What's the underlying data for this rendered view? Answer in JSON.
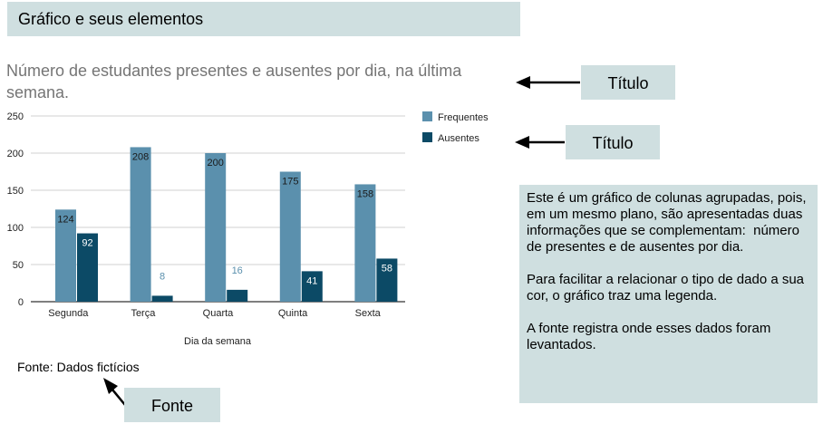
{
  "header": {
    "title": "Gráfico e seus elementos"
  },
  "tags": {
    "title_tag": "Título",
    "legend_tag": "Título",
    "source_tag": "Fonte"
  },
  "explanation": {
    "paragraphs": [
      "Este é um gráfico de colunas agrupadas, pois, em um mesmo plano, são apresentadas duas informações que se complementam:  número de presentes e de ausentes por dia.",
      "Para facilitar a relacionar o tipo de dado a sua cor, o gráfico traz uma legenda.",
      "A fonte registra onde esses dados foram levantados."
    ]
  },
  "source": {
    "text": "Fonte: Dados fictícios"
  },
  "colors": {
    "frequentes": "#5b90ad",
    "ausentes": "#0c4a66",
    "box": "#cfdfe0"
  },
  "chart_data": {
    "type": "bar",
    "title": "Número de estudantes presentes e ausentes por dia, na última semana.",
    "xlabel": "Dia da semana",
    "ylabel": "",
    "categories": [
      "Segunda",
      "Terça",
      "Quarta",
      "Quinta",
      "Sexta"
    ],
    "series": [
      {
        "name": "Frequentes",
        "values": [
          124,
          208,
          200,
          175,
          158
        ]
      },
      {
        "name": "Ausentes",
        "values": [
          92,
          8,
          16,
          41,
          58
        ]
      }
    ],
    "ylim": [
      0,
      250
    ],
    "yticks": [
      0,
      50,
      100,
      150,
      200,
      250
    ],
    "grid": true,
    "legend": "right"
  }
}
